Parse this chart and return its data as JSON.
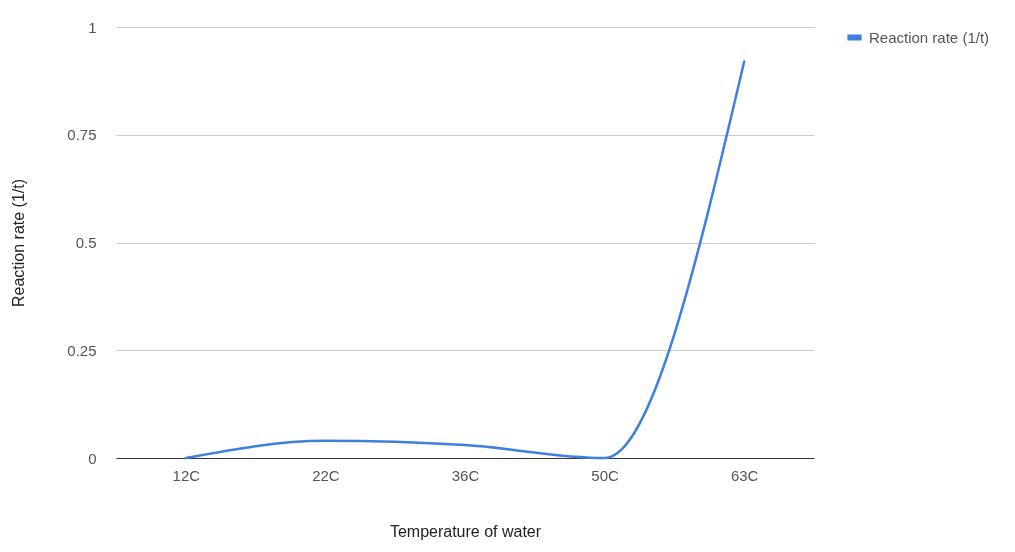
{
  "chart_data": {
    "type": "line",
    "xlabel": "Temperature of water",
    "ylabel": "Reaction rate (1/t)",
    "categories": [
      "12C",
      "22C",
      "36C",
      "50C",
      "63C"
    ],
    "series": [
      {
        "name": "Reaction rate (1/t)",
        "color": "#3f7fe0",
        "values": [
          0,
          0.04,
          0.03,
          0,
          0.92
        ]
      }
    ],
    "ylim": [
      0,
      1
    ],
    "yticks": [
      0,
      0.25,
      0.5,
      0.75,
      1
    ],
    "grid": "y",
    "legend": "top right",
    "marker": "none",
    "line_style": "solid"
  }
}
